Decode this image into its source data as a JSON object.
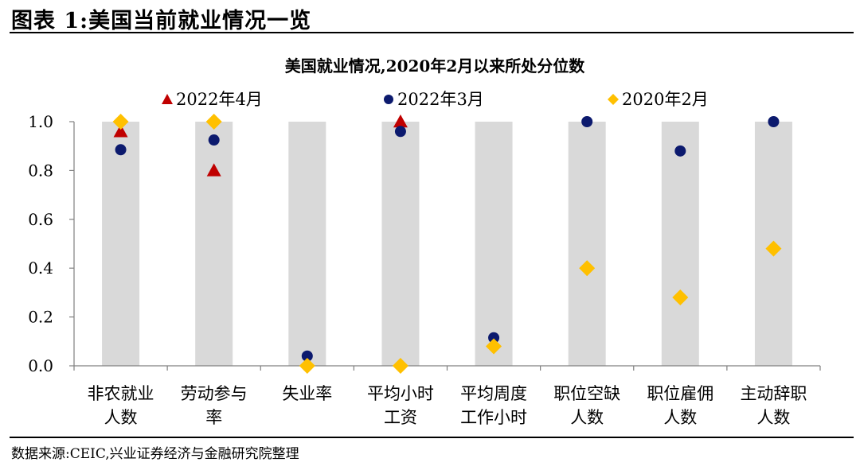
{
  "figure": {
    "title": "图表 1:美国当前就业情况一览",
    "source": "数据来源:CEIC,兴业证券经济与金融研究院整理"
  },
  "chart_data": {
    "type": "scatter",
    "title": "美国就业情况,2020年2月以来所处分位数",
    "categories": [
      [
        "非农就业",
        "人数"
      ],
      [
        "劳动参与",
        "率"
      ],
      [
        "失业率"
      ],
      [
        "平均小时",
        "工资"
      ],
      [
        "平均周度",
        "工作小时"
      ],
      [
        "职位空缺",
        "人数"
      ],
      [
        "职位雇佣",
        "人数"
      ],
      [
        "主动辞职",
        "人数"
      ]
    ],
    "ylim": [
      0,
      1
    ],
    "yticks": [
      "0.0",
      "0.2",
      "0.4",
      "0.6",
      "0.8",
      "1.0"
    ],
    "ytick_values": [
      0,
      0.2,
      0.4,
      0.6,
      0.8,
      1.0
    ],
    "range_bar": {
      "min": 0,
      "max": 1,
      "color": "#d9d9d9"
    },
    "series": [
      {
        "name": "2022年4月",
        "marker": "triangle",
        "color": "#c00000",
        "values": [
          0.96,
          0.8,
          null,
          1.0,
          null,
          null,
          null,
          null
        ]
      },
      {
        "name": "2022年3月",
        "marker": "circle",
        "color": "#0c1a6e",
        "values": [
          0.885,
          0.925,
          0.04,
          0.96,
          0.115,
          1.0,
          0.88,
          1.0
        ]
      },
      {
        "name": "2020年2月",
        "marker": "diamond",
        "color": "#ffc000",
        "values": [
          1.0,
          1.0,
          0.0,
          0.0,
          0.08,
          0.4,
          0.28,
          0.48
        ]
      }
    ],
    "legend_position": "top"
  }
}
